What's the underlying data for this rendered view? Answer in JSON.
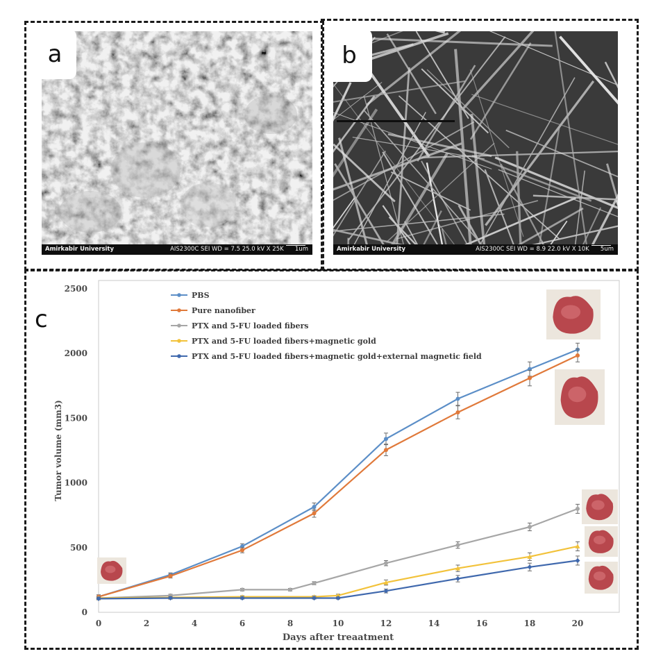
{
  "panels": {
    "a": "a",
    "b": "b",
    "c": "c"
  },
  "sem_a": {
    "institution": "Amirkabir University",
    "info": "AIS2300C   SEI   WD = 7.5   25.0 kV   X 25K",
    "scale": "1um"
  },
  "sem_b": {
    "institution": "Amirkabir University",
    "info": "AIS2300C   SEI   WD = 8.9   22.0 kV   X 10K",
    "scale": "5um"
  },
  "colors": {
    "pbs": "#5b8ec7",
    "pure": "#e0793a",
    "ptx": "#a6a6a6",
    "gold": "#f2c23a",
    "field": "#3f68ad",
    "tumor": "#b8474d"
  },
  "chart_data": {
    "type": "line",
    "xlabel": "Days after treaatment",
    "ylabel": "Tumor volume (mm3)",
    "xlim": [
      0,
      20
    ],
    "ylim": [
      0,
      2500
    ],
    "xticks": [
      0,
      2,
      4,
      6,
      8,
      10,
      12,
      14,
      16,
      18,
      20
    ],
    "yticks": [
      0,
      500,
      1000,
      1500,
      2000,
      2500
    ],
    "grid": false,
    "legend_position": "top-left",
    "series": [
      {
        "name": "PBS",
        "color": "#5b8ec7",
        "marker": "circle",
        "x": [
          0,
          3,
          6,
          9,
          12,
          15,
          18,
          20
        ],
        "y": [
          120,
          290,
          510,
          815,
          1340,
          1650,
          1880,
          2030
        ],
        "err": [
          15,
          15,
          20,
          30,
          45,
          50,
          55,
          50
        ]
      },
      {
        "name": "Pure nanofiber",
        "color": "#e0793a",
        "marker": "circle",
        "x": [
          0,
          3,
          6,
          9,
          12,
          15,
          18,
          20
        ],
        "y": [
          120,
          280,
          480,
          765,
          1255,
          1545,
          1810,
          1985
        ],
        "err": [
          15,
          15,
          20,
          30,
          45,
          50,
          60,
          50
        ]
      },
      {
        "name": "PTX and 5-FU loaded fibers",
        "color": "#a6a6a6",
        "marker": "circle",
        "x": [
          0,
          3,
          6,
          8,
          9,
          12,
          15,
          18,
          20
        ],
        "y": [
          110,
          130,
          175,
          175,
          225,
          380,
          520,
          660,
          800
        ],
        "err": [
          10,
          10,
          10,
          10,
          12,
          20,
          25,
          30,
          35
        ]
      },
      {
        "name": "PTX and 5-FU loaded fibers+magnetic gold",
        "color": "#f2c23a",
        "marker": "triangle",
        "x": [
          0,
          3,
          6,
          9,
          10,
          12,
          15,
          18,
          20
        ],
        "y": [
          110,
          115,
          120,
          120,
          130,
          230,
          340,
          430,
          510
        ],
        "err": [
          8,
          8,
          8,
          8,
          10,
          20,
          25,
          30,
          35
        ]
      },
      {
        "name": "PTX and 5-FU loaded fibers+magnetic gold+external magnetic field",
        "color": "#3f68ad",
        "marker": "diamond",
        "x": [
          0,
          3,
          6,
          9,
          10,
          12,
          15,
          18,
          20
        ],
        "y": [
          105,
          110,
          110,
          110,
          110,
          165,
          260,
          350,
          400
        ],
        "err": [
          8,
          8,
          8,
          8,
          8,
          15,
          25,
          30,
          35
        ]
      }
    ]
  }
}
